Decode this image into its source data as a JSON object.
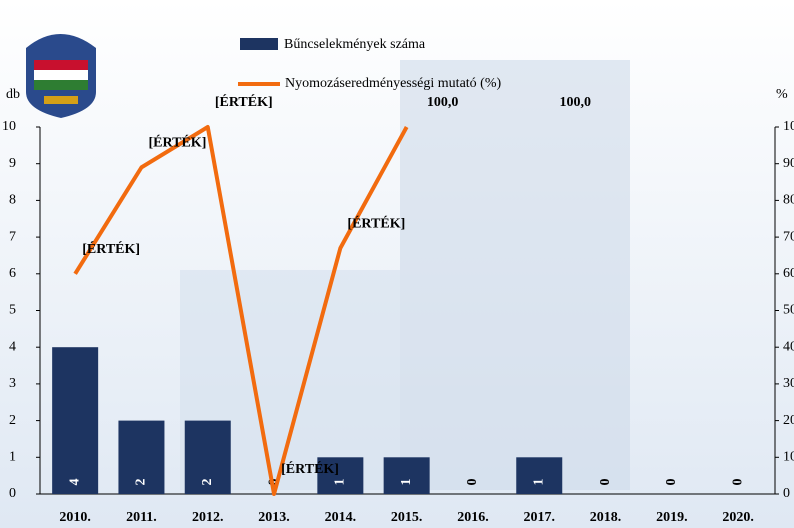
{
  "chart_data": {
    "type": "bar_line",
    "categories": [
      "2010.",
      "2011.",
      "2012.",
      "2013.",
      "2014.",
      "2015.",
      "2016.",
      "2017.",
      "2018.",
      "2019.",
      "2020."
    ],
    "y_label": "db",
    "y2_label": "%",
    "series": [
      {
        "name": "Bűncselekmények száma",
        "color": "#1d3461",
        "type": "bar",
        "values": [
          4,
          2,
          2,
          0,
          1,
          1,
          0,
          1,
          0,
          0,
          0
        ]
      },
      {
        "name": "Nyomozáseredményességi mutató (%)",
        "color": "#f26b0f",
        "type": "line",
        "axis": "y2",
        "values": [
          60,
          89,
          100,
          0,
          67,
          100,
          null,
          100,
          null,
          null,
          null
        ],
        "value_labels": [
          "[ÉRTÉK]",
          "[ÉRTÉK]",
          "[ÉRTÉK]",
          "[ÉRTÉK]",
          "[ÉRTÉK]",
          "100,0",
          null,
          "100,0",
          null,
          null,
          null
        ]
      }
    ],
    "ylim": [
      0,
      10
    ],
    "yticks": [
      0,
      1,
      2,
      3,
      4,
      5,
      6,
      7,
      8,
      9,
      10
    ],
    "y2lim": [
      0,
      100
    ],
    "y2ticks": [
      0,
      10,
      20,
      30,
      40,
      50,
      60,
      70,
      80,
      90,
      100
    ]
  }
}
